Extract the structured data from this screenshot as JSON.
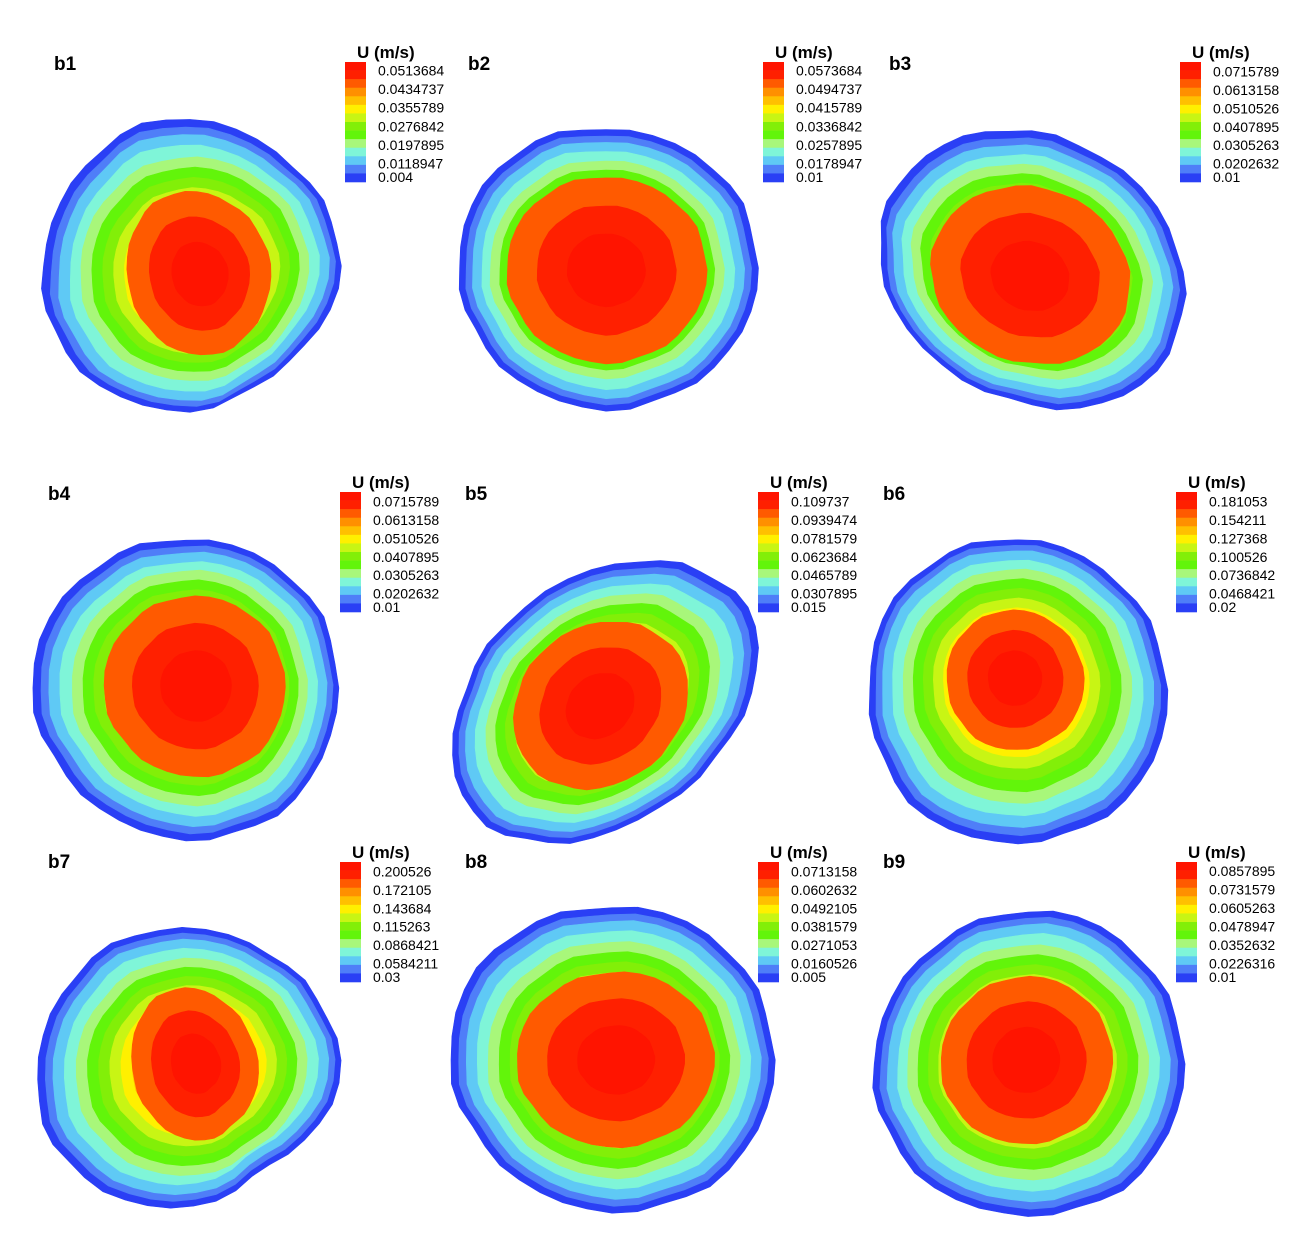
{
  "figure": {
    "description_free": true
  },
  "colors": {
    "levels": [
      "#2a3ff5",
      "#4f7ef8",
      "#5fc9f5",
      "#7ff5d8",
      "#a8f77a",
      "#62f50a",
      "#82ef08",
      "#c8f514",
      "#fff000",
      "#ffc000",
      "#ff9000",
      "#ff5a00",
      "#ff2000",
      "#ff1400"
    ]
  },
  "chart_data": [
    {
      "type": "heatmap",
      "panel": "b1",
      "legend_title": "U (m/s)",
      "ticks": [
        "0.0513684",
        "0.0434737",
        "0.0355789",
        "0.0276842",
        "0.0197895",
        "0.0118947",
        "0.004"
      ],
      "tick_values": [
        0.0513684,
        0.0434737,
        0.0355789,
        0.0276842,
        0.0197895,
        0.0118947,
        0.004
      ],
      "range": [
        0.004,
        0.055
      ]
    },
    {
      "type": "heatmap",
      "panel": "b2",
      "legend_title": "U (m/s)",
      "ticks": [
        "0.0573684",
        "0.0494737",
        "0.0415789",
        "0.0336842",
        "0.0257895",
        "0.0178947",
        "0.01"
      ],
      "tick_values": [
        0.0573684,
        0.0494737,
        0.0415789,
        0.0336842,
        0.0257895,
        0.0178947,
        0.01
      ],
      "range": [
        0.01,
        0.061
      ]
    },
    {
      "type": "heatmap",
      "panel": "b3",
      "legend_title": "U (m/s)",
      "ticks": [
        "0.0715789",
        "0.0613158",
        "0.0510526",
        "0.0407895",
        "0.0305263",
        "0.0202632",
        "0.01"
      ],
      "tick_values": [
        0.0715789,
        0.0613158,
        0.0510526,
        0.0407895,
        0.0305263,
        0.0202632,
        0.01
      ],
      "range": [
        0.01,
        0.077
      ]
    },
    {
      "type": "heatmap",
      "panel": "b4",
      "legend_title": "U (m/s)",
      "ticks": [
        "0.0715789",
        "0.0613158",
        "0.0510526",
        "0.0407895",
        "0.0305263",
        "0.0202632",
        "0.01"
      ],
      "tick_values": [
        0.0715789,
        0.0613158,
        0.0510526,
        0.0407895,
        0.0305263,
        0.0202632,
        0.01
      ],
      "range": [
        0.01,
        0.077
      ]
    },
    {
      "type": "heatmap",
      "panel": "b5",
      "legend_title": "U (m/s)",
      "ticks": [
        "0.109737",
        "0.0939474",
        "0.0781579",
        "0.0623684",
        "0.0465789",
        "0.0307895",
        "0.015"
      ],
      "tick_values": [
        0.109737,
        0.0939474,
        0.0781579,
        0.0623684,
        0.0465789,
        0.0307895,
        0.015
      ],
      "range": [
        0.015,
        0.118
      ]
    },
    {
      "type": "heatmap",
      "panel": "b6",
      "legend_title": "U (m/s)",
      "ticks": [
        "0.181053",
        "0.154211",
        "0.127368",
        "0.100526",
        "0.0736842",
        "0.0468421",
        "0.02"
      ],
      "tick_values": [
        0.181053,
        0.154211,
        0.127368,
        0.100526,
        0.0736842,
        0.0468421,
        0.02
      ],
      "range": [
        0.02,
        0.195
      ]
    },
    {
      "type": "heatmap",
      "panel": "b7",
      "legend_title": "U (m/s)",
      "ticks": [
        "0.200526",
        "0.172105",
        "0.143684",
        "0.115263",
        "0.0868421",
        "0.0584211",
        "0.03"
      ],
      "tick_values": [
        0.200526,
        0.172105,
        0.143684,
        0.115263,
        0.0868421,
        0.0584211,
        0.03
      ],
      "range": [
        0.03,
        0.215
      ]
    },
    {
      "type": "heatmap",
      "panel": "b8",
      "legend_title": "U (m/s)",
      "ticks": [
        "0.0713158",
        "0.0602632",
        "0.0492105",
        "0.0381579",
        "0.0271053",
        "0.0160526",
        "0.005"
      ],
      "tick_values": [
        0.0713158,
        0.0602632,
        0.0492105,
        0.0381579,
        0.0271053,
        0.0160526,
        0.005
      ],
      "range": [
        0.005,
        0.077
      ]
    },
    {
      "type": "heatmap",
      "panel": "b9",
      "legend_title": "U (m/s)",
      "ticks": [
        "0.0857895",
        "0.0731579",
        "0.0605263",
        "0.0478947",
        "0.0352632",
        "0.0226316",
        "0.01"
      ],
      "tick_values": [
        0.0857895,
        0.0731579,
        0.0605263,
        0.0478947,
        0.0352632,
        0.0226316,
        0.01
      ],
      "range": [
        0.01,
        0.092
      ]
    }
  ]
}
